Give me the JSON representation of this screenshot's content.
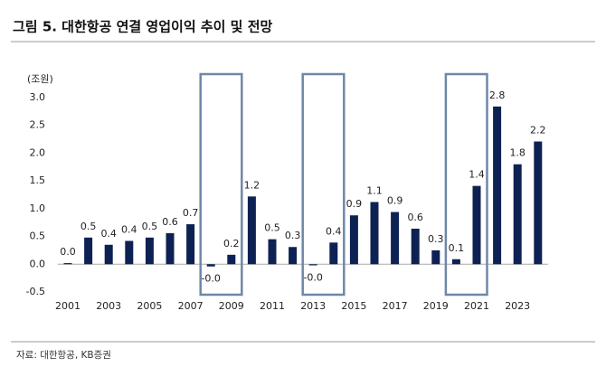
{
  "chart_data": {
    "type": "bar",
    "title": "그림 5. 대한항공 연결 영업이익 추이 및 전망",
    "y_unit": "(조원)",
    "source": "자료: 대한항공, KB증권",
    "categories": [
      "2001",
      null,
      "2003",
      null,
      "2005",
      null,
      "2007",
      null,
      "2009",
      null,
      "2011",
      null,
      "2013",
      null,
      "2015",
      null,
      "2017",
      null,
      "2019",
      null,
      "2021",
      null,
      "2023",
      null
    ],
    "values": [
      0.02,
      0.48,
      0.35,
      0.42,
      0.48,
      0.56,
      0.72,
      -0.04,
      0.17,
      1.22,
      0.45,
      0.31,
      -0.02,
      0.39,
      0.88,
      1.12,
      0.94,
      0.64,
      0.25,
      0.09,
      1.41,
      2.84,
      1.8,
      2.21
    ],
    "value_labels": [
      "0.0",
      "0.5",
      "0.4",
      "0.4",
      "0.5",
      "0.6",
      "0.7",
      "-0.0",
      "0.2",
      "1.2",
      "0.5",
      "0.3",
      "-0.0",
      "0.4",
      "0.9",
      "1.1",
      "0.9",
      "0.6",
      "0.3",
      "0.1",
      "1.4",
      "2.8",
      "1.8",
      "2.2"
    ],
    "color": "#0d2253",
    "ylim": [
      -0.5,
      3.0
    ],
    "yticks": [
      {
        "value": -0.5,
        "label": "-0.5"
      },
      {
        "value": 0,
        "label": "0.0"
      },
      {
        "value": 0.5,
        "label": "0.5"
      },
      {
        "value": 1,
        "label": "1.0"
      },
      {
        "value": 1.5,
        "label": "1.5"
      },
      {
        "value": 2,
        "label": "2.0"
      },
      {
        "value": 2.5,
        "label": "2.5"
      },
      {
        "value": 3,
        "label": "3.0"
      }
    ],
    "grid": false
  }
}
